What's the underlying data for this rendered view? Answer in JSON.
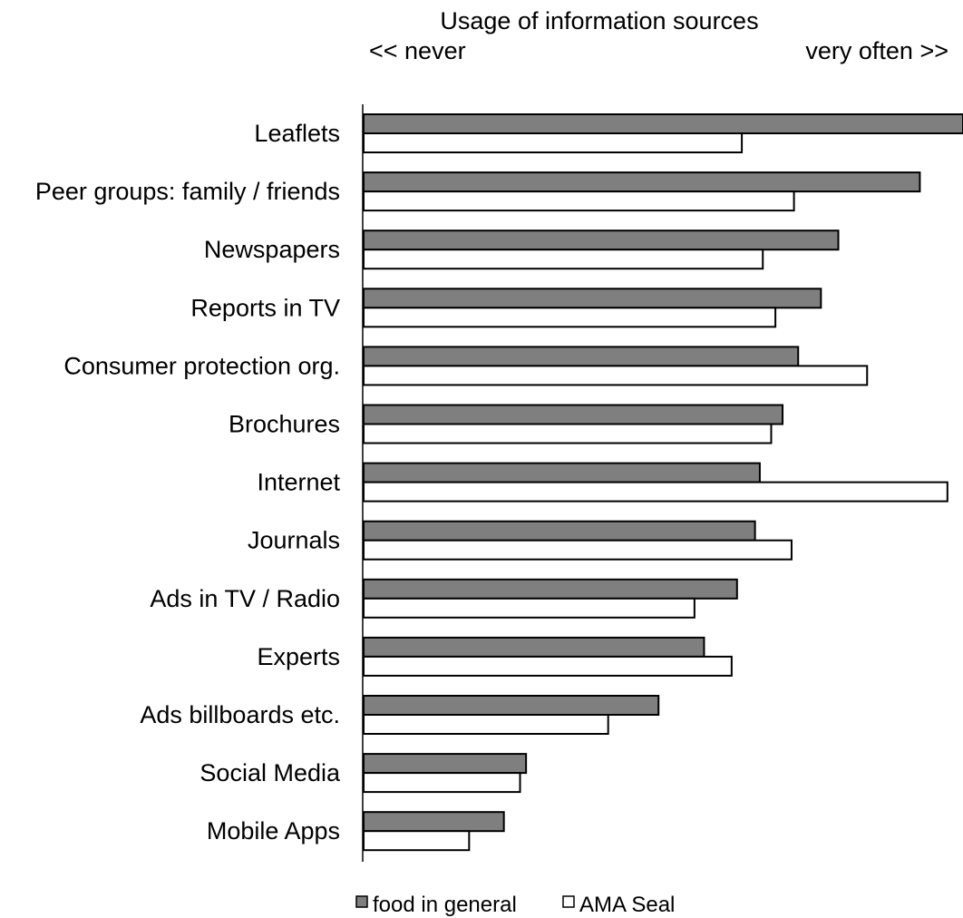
{
  "chart_data": {
    "type": "bar",
    "orientation": "horizontal",
    "title": "Usage of information sources",
    "scale_left_label": "<< never",
    "scale_right_label": "very often >>",
    "categories": [
      "Leaflets",
      "Peer groups: family / friends",
      "Newspapers",
      "Reports in TV",
      "Consumer protection org.",
      "Brochures",
      "Internet",
      "Journals",
      "Ads in TV / Radio",
      "Experts",
      "Ads billboards etc.",
      "Social Media",
      "Mobile Apps"
    ],
    "series": [
      {
        "name": "food in general",
        "color": "#7f7f7f",
        "values": [
          1.0,
          0.928,
          0.792,
          0.763,
          0.725,
          0.699,
          0.661,
          0.653,
          0.623,
          0.568,
          0.492,
          0.271,
          0.234
        ]
      },
      {
        "name": "AMA Seal",
        "color": "#ffffff",
        "values": [
          0.631,
          0.718,
          0.666,
          0.687,
          0.84,
          0.68,
          0.974,
          0.714,
          0.552,
          0.614,
          0.408,
          0.261,
          0.176
        ]
      }
    ],
    "xlim": [
      0,
      1
    ],
    "grid": false,
    "legend_position": "bottom"
  }
}
